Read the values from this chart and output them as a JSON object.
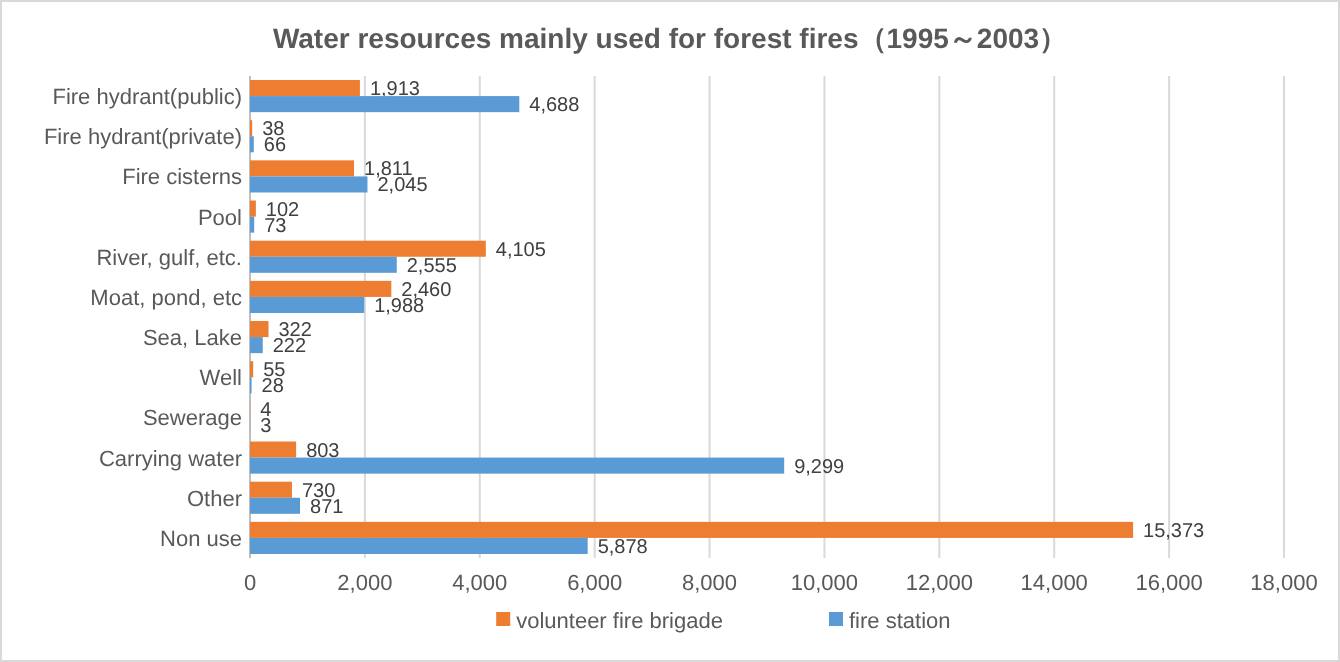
{
  "chart_data": {
    "type": "bar",
    "orientation": "horizontal",
    "title": "Water resources mainly used for forest fires（1995～2003）",
    "categories": [
      "Fire hydrant(public)",
      "Fire hydrant(private)",
      "Fire cisterns",
      "Pool",
      "River, gulf, etc.",
      "Moat, pond, etc",
      "Sea, Lake",
      "Well",
      "Sewerage",
      "Carrying water",
      "Other",
      "Non use"
    ],
    "series": [
      {
        "name": "volunteer fire brigade",
        "color": "#ed7d31",
        "values": [
          1913,
          38,
          1811,
          102,
          4105,
          2460,
          322,
          55,
          4,
          803,
          730,
          15373
        ],
        "value_labels": [
          "1,913",
          "38",
          "1,811",
          "102",
          "4,105",
          "2,460",
          "322",
          "55",
          "4",
          "803",
          "730",
          "15,373"
        ]
      },
      {
        "name": "fire station",
        "color": "#5b9bd5",
        "values": [
          4688,
          66,
          2045,
          73,
          2555,
          1988,
          222,
          28,
          3,
          9299,
          871,
          5878
        ],
        "value_labels": [
          "4,688",
          "66",
          "2,045",
          "73",
          "2,555",
          "1,988",
          "222",
          "28",
          "3",
          "9,299",
          "871",
          "5,878"
        ]
      }
    ],
    "xlim": [
      0,
      18000
    ],
    "xticks": [
      0,
      {
        "value": 2000,
        "label": "2,000"
      },
      {
        "value": 4000,
        "label": "4,000"
      },
      {
        "value": 6000,
        "label": "6,000"
      },
      {
        "value": 8000,
        "label": "8,000"
      },
      {
        "value": 10000,
        "label": "10,000"
      },
      {
        "value": 12000,
        "label": "12,000"
      },
      {
        "value": 14000,
        "label": "14,000"
      },
      {
        "value": 16000,
        "label": "16,000"
      },
      {
        "value": 18000,
        "label": "18,000"
      }
    ],
    "grid": "x",
    "legend": "bottom"
  }
}
